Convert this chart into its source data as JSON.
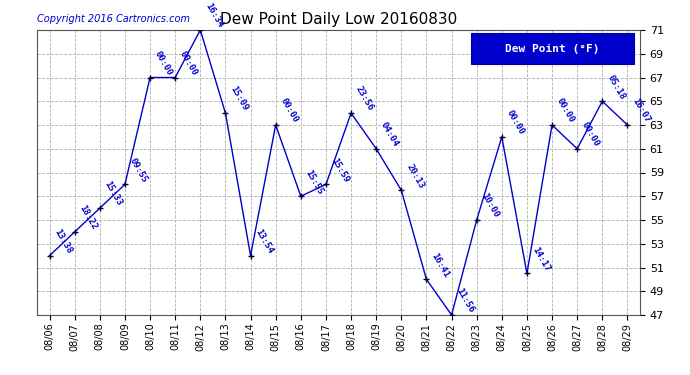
{
  "title": "Dew Point Daily Low 20160830",
  "copyright": "Copyright 2016 Cartronics.com",
  "legend_label": "Dew Point (°F)",
  "dates": [
    "08/06",
    "08/07",
    "08/08",
    "08/09",
    "08/10",
    "08/11",
    "08/12",
    "08/13",
    "08/14",
    "08/15",
    "08/16",
    "08/17",
    "08/18",
    "08/19",
    "08/20",
    "08/21",
    "08/22",
    "08/23",
    "08/24",
    "08/25",
    "08/26",
    "08/27",
    "08/28",
    "08/29"
  ],
  "values": [
    52.0,
    54.0,
    56.0,
    58.0,
    67.0,
    67.0,
    71.0,
    64.0,
    52.0,
    63.0,
    57.0,
    58.0,
    64.0,
    61.0,
    57.5,
    50.0,
    47.0,
    55.0,
    62.0,
    50.5,
    63.0,
    61.0,
    65.0,
    63.0
  ],
  "annotations": [
    "13:38",
    "18:22",
    "15:33",
    "09:55",
    "00:00",
    "00:00",
    "16:34",
    "15:09",
    "13:54",
    "00:00",
    "15:55",
    "15:59",
    "23:56",
    "04:04",
    "20:13",
    "16:41",
    "11:56",
    "10:00",
    "00:00",
    "14:17",
    "00:00",
    "00:00",
    "05:18",
    "16:07"
  ],
  "ylim": [
    47.0,
    71.0
  ],
  "yticks": [
    47.0,
    49.0,
    51.0,
    53.0,
    55.0,
    57.0,
    59.0,
    61.0,
    63.0,
    65.0,
    67.0,
    69.0,
    71.0
  ],
  "line_color": "#0000cc",
  "marker_color": "#000033",
  "bg_color": "#ffffff",
  "grid_color": "#b0b0b0",
  "annotation_color": "#0000cc",
  "title_color": "#000000",
  "legend_bg": "#0000cc",
  "legend_fg": "#ffffff",
  "title_fontsize": 11,
  "annot_fontsize": 6.5,
  "ytick_fontsize": 8,
  "xtick_fontsize": 7,
  "copyright_fontsize": 7,
  "legend_fontsize": 8
}
